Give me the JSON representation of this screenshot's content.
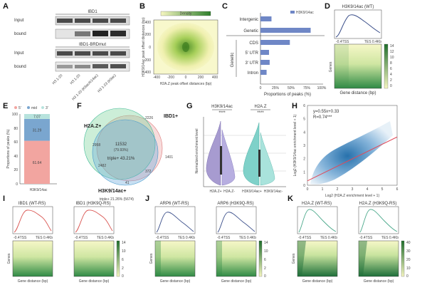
{
  "panel_letters": [
    "A",
    "B",
    "C",
    "D",
    "E",
    "F",
    "G",
    "H",
    "I",
    "J",
    "K"
  ],
  "panelA": {
    "title_top": "IBD1",
    "title_bottom": "IBD1-BRDmut",
    "row_labels_top": [
      "Input",
      "bound"
    ],
    "row_labels_bottom": [
      "Input",
      "bound"
    ],
    "lane_labels": [
      "H3 1-20",
      "H3 1-20",
      "H3 1-20 (K9ac/K14ac)",
      "H3 1-23 (K9ac)"
    ]
  },
  "panelB": {
    "colorbar_label": "Density",
    "ylabel": "H3K9/14ac peak offset distances (bp)",
    "xlabel": "H2A.Z peak offset distances (bp)",
    "ticks": [
      "400",
      "200",
      "0",
      "-200",
      "-400"
    ],
    "xticks": [
      "-400",
      "-200",
      "0",
      "200",
      "400"
    ]
  },
  "chart_data": [
    {
      "type": "bar",
      "title": "C",
      "legend": "H3K9/14ac",
      "categories": [
        "Intergenic",
        "Genetic",
        "CDS",
        "5' UTR",
        "3' UTR",
        "Intron"
      ],
      "values": [
        18,
        82,
        48,
        14,
        15,
        10
      ],
      "group_label": "Genetic",
      "xlabel": "Proportions of peaks (%)",
      "xticks": [
        "0",
        "25%",
        "50%",
        "75%",
        "100%"
      ],
      "xlim": [
        0,
        100
      ]
    },
    {
      "type": "bar",
      "title": "E",
      "categories": [
        "H3K9/14ac"
      ],
      "series": [
        {
          "name": "5'",
          "values": [
            61.64
          ]
        },
        {
          "name": "mid",
          "values": [
            31.29
          ]
        },
        {
          "name": "3'",
          "values": [
            7.07
          ]
        }
      ],
      "value_labels": [
        "61.64",
        "31.29",
        "7.07"
      ],
      "ylabel": "Proportions of peaks (%)",
      "yticks": [
        "0",
        "20",
        "40",
        "60",
        "80",
        "100"
      ],
      "ylim": [
        0,
        100
      ]
    },
    {
      "type": "scatter",
      "title": "H",
      "equation": "y=0.55x+0.33",
      "r_label": "R=0.74***",
      "slope": 0.55,
      "intercept": 0.33,
      "xlabel": "Log2 (H2A.Z enrichment level + 1)",
      "ylabel": "Log2 (H3K9/14ac enrichment level + 1)",
      "xticks": [
        "0",
        "1",
        "2",
        "3",
        "4",
        "5",
        "6"
      ],
      "yticks": [
        "0",
        "1",
        "2",
        "3",
        "4",
        "5",
        "6"
      ],
      "xlim": [
        0,
        6
      ],
      "ylim": [
        0,
        6
      ]
    }
  ],
  "panelD": {
    "title": "H3K9/14ac (WT)",
    "xticks": [
      "-0.4TSS",
      "TES 0.4Kb"
    ],
    "ylabel": "Genes",
    "xlabel": "Gene distance (bp)",
    "cbar_ticks": [
      "14",
      "12",
      "10",
      "8",
      "6",
      "4",
      "2",
      "0"
    ]
  },
  "panelF": {
    "labels": [
      "H2A.Z+",
      "IBD1+",
      "H3K9/14ac+"
    ],
    "counts": [
      "2226",
      "2958",
      "11532",
      "(79.93%)",
      "1401",
      "2482",
      "372",
      "41"
    ],
    "triple_inner": "triple+ 43.21%",
    "triple_outer": "triple+ 21.26% (5674)"
  },
  "panelG": {
    "titles": [
      "H3K9/14ac",
      "H2A.Z"
    ],
    "stars": [
      "****",
      "****"
    ],
    "ylabel": "Normalized enrichment level",
    "xlabels": [
      "H2A.Z+",
      "H2A.Z-",
      "H3K9/14ac+",
      "H3K9/14ac-"
    ]
  },
  "panelIJK": {
    "titles": [
      "IBD1 (WT-RS)",
      "IBD1 (H3K9Q-RS)",
      "ARP6 (WT-RS)",
      "ARP6 (H3K9Q-RS)",
      "H2A.Z (WT-RS)",
      "H2A.Z (H3K9Q-RS)"
    ],
    "xtick_left": "-0.4TSS",
    "xtick_right": "TES 0.4Kb",
    "ylabel": "Genes",
    "xlabel": "Gene distance (bp)",
    "cbarI": [
      "14",
      "12",
      "10",
      "8",
      "6",
      "4",
      "2",
      "0"
    ],
    "cbarJ": [
      "14",
      "12",
      "10",
      "8",
      "6",
      "4",
      "2",
      "0"
    ],
    "cbarK": [
      "40",
      "30",
      "20",
      "10",
      "0"
    ]
  },
  "colors": {
    "bar": "#6f87c6",
    "five": "#f2a5a0",
    "mid": "#7aa6cf",
    "three": "#b7e3dd",
    "violet": "#a79bd0",
    "teal": "#7fd1c9",
    "venn_green": "#6dcf8f",
    "venn_blue": "#5fa4d9",
    "venn_pink": "#e89a9a",
    "regline": "#e04a5a",
    "profile_red": "#d9534f",
    "profile_navy": "#3b4f8a",
    "profile_green": "#4aa88a"
  }
}
